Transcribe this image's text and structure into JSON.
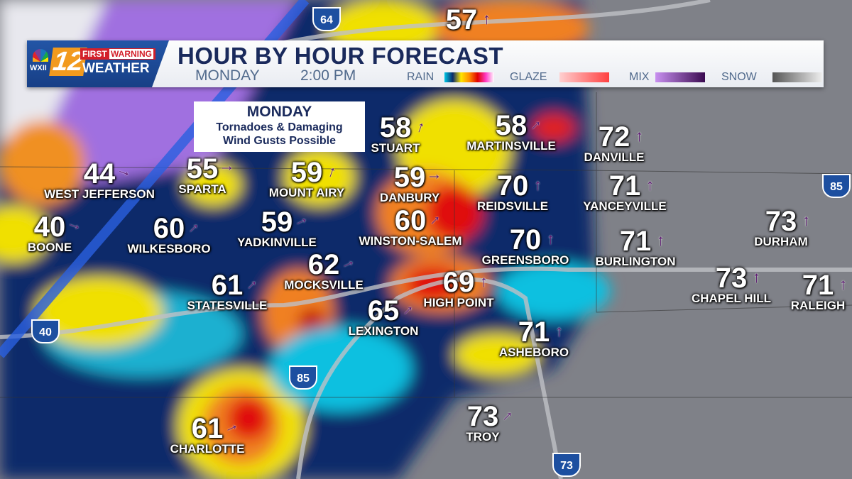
{
  "header": {
    "station": "WXII",
    "channel": "12",
    "brand_first": "FIRST",
    "brand_warning": "WARNING",
    "brand_weather": "WEATHER",
    "title": "HOUR BY HOUR FORECAST",
    "day": "MONDAY",
    "time": "2:00 PM"
  },
  "legend": [
    {
      "label": "RAIN",
      "colors": [
        "#00c8e6",
        "#0a2a6a",
        "#ffe600",
        "#ff8c00",
        "#e00000",
        "#ff3cc8",
        "#ffffff"
      ]
    },
    {
      "label": "GLAZE",
      "colors": [
        "#ffd0d0",
        "#ff4040"
      ]
    },
    {
      "label": "MIX",
      "colors": [
        "#c890f0",
        "#3a0a50"
      ]
    },
    {
      "label": "SNOW",
      "colors": [
        "#555555",
        "#eeeeee"
      ]
    }
  ],
  "alert": {
    "heading": "MONDAY",
    "line1": "Tornadoes & Damaging",
    "line2": "Wind Gusts Possible"
  },
  "highways": [
    "64",
    "40",
    "85",
    "73",
    "85"
  ],
  "cities": [
    {
      "name": "",
      "temp": "57",
      "wind": "north"
    },
    {
      "name": "STUART",
      "temp": "58",
      "wind": "north-northeast"
    },
    {
      "name": "MARTINSVILLE",
      "temp": "58",
      "wind": "northeast"
    },
    {
      "name": "DANVILLE",
      "temp": "72",
      "wind": "north"
    },
    {
      "name": "WEST JEFFERSON",
      "temp": "44",
      "wind": "east-southeast"
    },
    {
      "name": "SPARTA",
      "temp": "55",
      "wind": "east"
    },
    {
      "name": "MOUNT AIRY",
      "temp": "59",
      "wind": "north-northeast"
    },
    {
      "name": "DANBURY",
      "temp": "59",
      "wind": "east"
    },
    {
      "name": "REIDSVILLE",
      "temp": "70",
      "wind": "north"
    },
    {
      "name": "YANCEYVILLE",
      "temp": "71",
      "wind": "north"
    },
    {
      "name": "BOONE",
      "temp": "40",
      "wind": "east-southeast"
    },
    {
      "name": "WILKESBORO",
      "temp": "60",
      "wind": "northeast"
    },
    {
      "name": "YADKINVILLE",
      "temp": "59",
      "wind": "east-northeast"
    },
    {
      "name": "WINSTON-SALEM",
      "temp": "60",
      "wind": "northeast"
    },
    {
      "name": "GREENSBORO",
      "temp": "70",
      "wind": "north"
    },
    {
      "name": "BURLINGTON",
      "temp": "71",
      "wind": "north"
    },
    {
      "name": "DURHAM",
      "temp": "73",
      "wind": "north"
    },
    {
      "name": "CHAPEL HILL",
      "temp": "73",
      "wind": "north"
    },
    {
      "name": "RALEIGH",
      "temp": "71",
      "wind": "north"
    },
    {
      "name": "STATESVILLE",
      "temp": "61",
      "wind": "northeast"
    },
    {
      "name": "MOCKSVILLE",
      "temp": "62",
      "wind": "east-northeast"
    },
    {
      "name": "HIGH POINT",
      "temp": "69",
      "wind": "north"
    },
    {
      "name": "LEXINGTON",
      "temp": "65",
      "wind": "northeast"
    },
    {
      "name": "ASHEBORO",
      "temp": "71",
      "wind": "north"
    },
    {
      "name": "TROY",
      "temp": "73",
      "wind": "northeast"
    },
    {
      "name": "CHARLOTTE",
      "temp": "61",
      "wind": "east-northeast"
    }
  ]
}
